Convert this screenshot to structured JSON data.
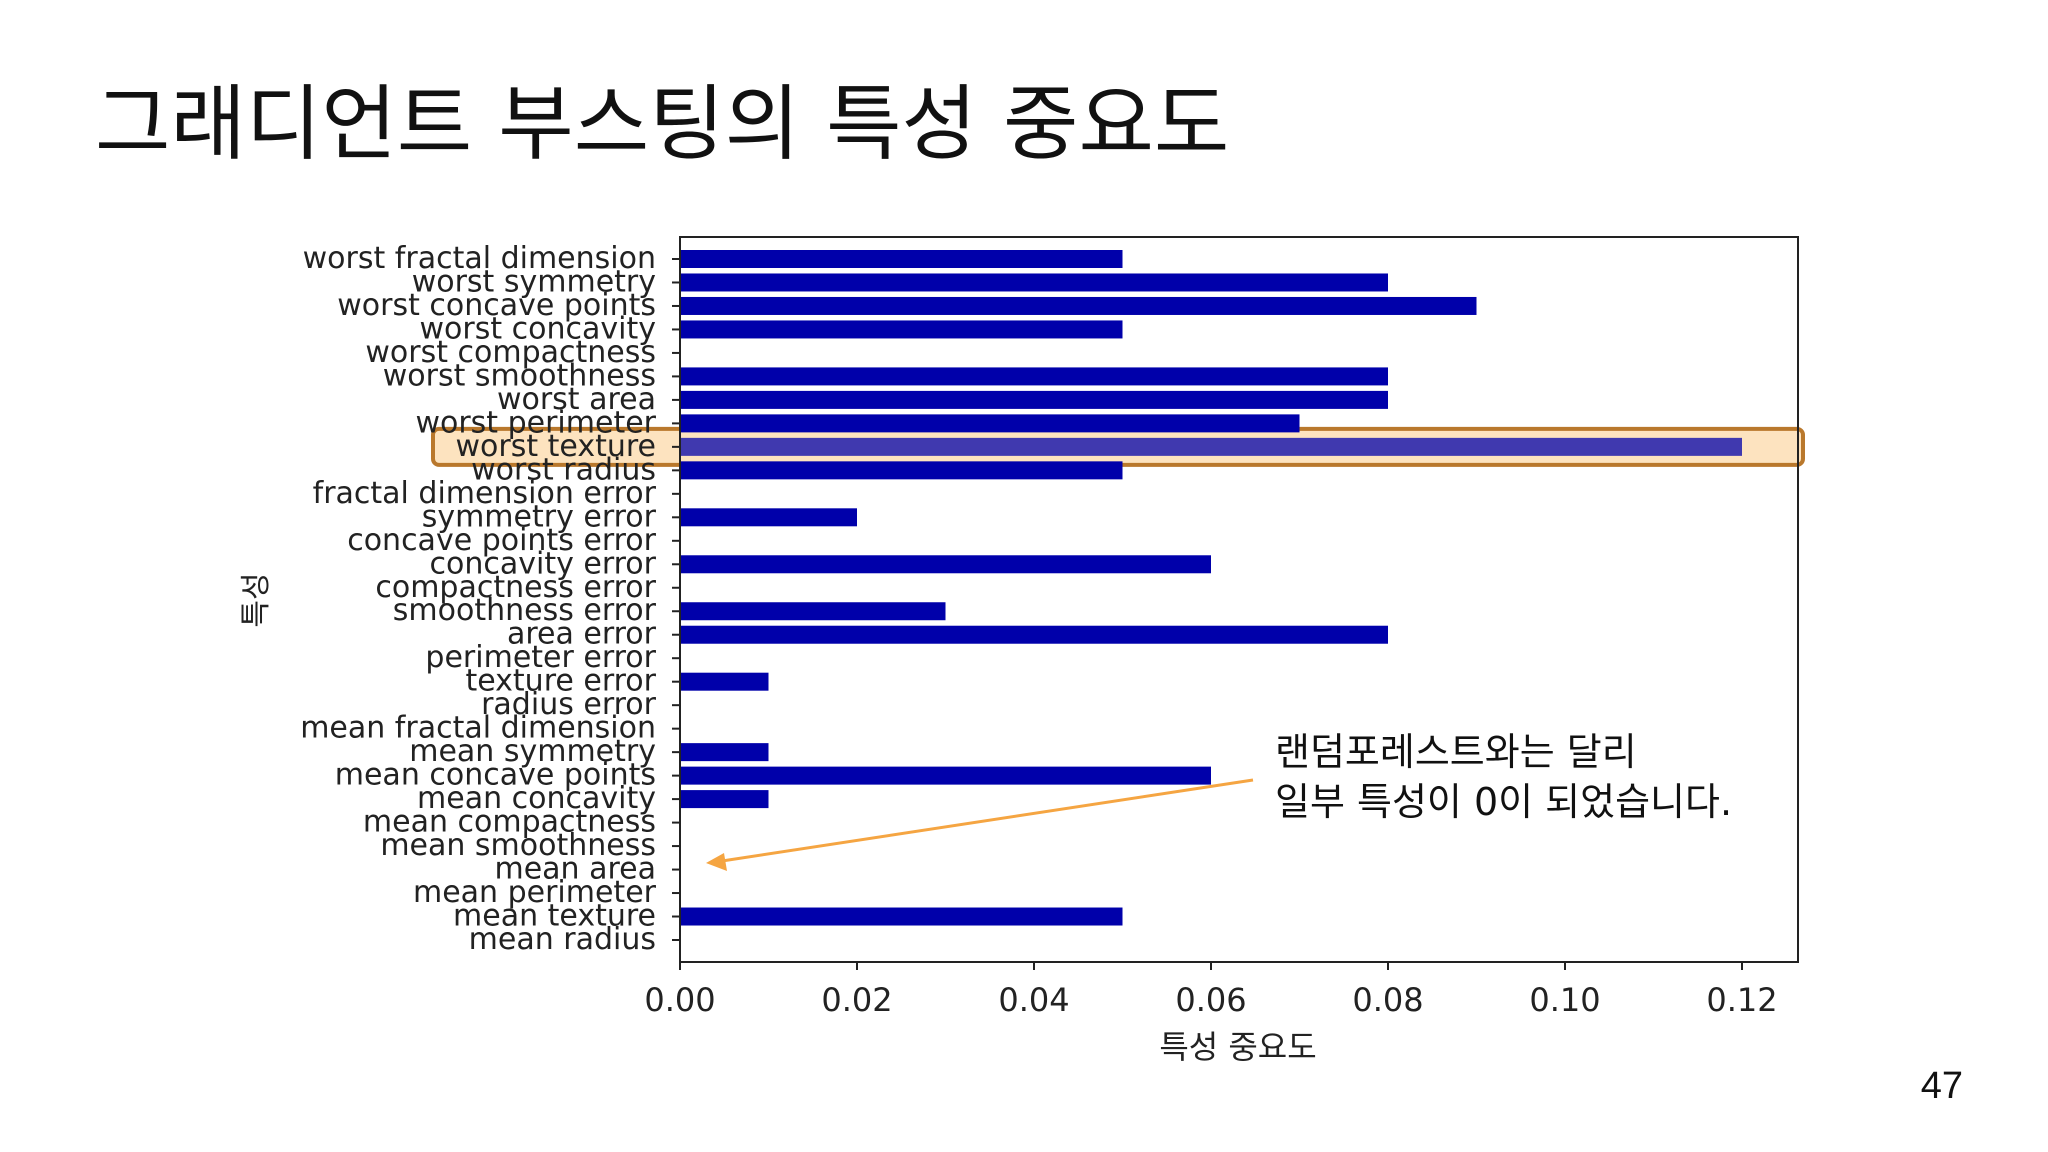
{
  "slide": {
    "title": "그래디언트 부스팅의 특성 중요도",
    "page_number": "47"
  },
  "annotation": {
    "line1": "랜덤포레스트와는 달리",
    "line2": "일부 특성이 0이 되었습니다.",
    "arrow_color": "#f5a542"
  },
  "highlight": {
    "feature": "worst texture",
    "border_color": "#b9782c",
    "fill_color": "#fde3bf"
  },
  "chart_data": {
    "type": "bar",
    "orientation": "horizontal",
    "xlabel": "특성 중요도",
    "ylabel": "특성",
    "xlim": [
      0,
      0.126
    ],
    "xticks": [
      0.0,
      0.02,
      0.04,
      0.06,
      0.08,
      0.1,
      0.12
    ],
    "xtick_labels": [
      "0.00",
      "0.02",
      "0.04",
      "0.06",
      "0.08",
      "0.10",
      "0.12"
    ],
    "bar_color": "#0000aa",
    "grid": false,
    "categories": [
      "mean radius",
      "mean texture",
      "mean perimeter",
      "mean area",
      "mean smoothness",
      "mean compactness",
      "mean concavity",
      "mean concave points",
      "mean symmetry",
      "mean fractal dimension",
      "radius error",
      "texture error",
      "perimeter error",
      "area error",
      "smoothness error",
      "compactness error",
      "concavity error",
      "concave points error",
      "symmetry error",
      "fractal dimension error",
      "worst radius",
      "worst texture",
      "worst perimeter",
      "worst area",
      "worst smoothness",
      "worst compactness",
      "worst concavity",
      "worst concave points",
      "worst symmetry",
      "worst fractal dimension"
    ],
    "values": [
      0.0,
      0.05,
      0.0,
      0.0,
      0.0,
      0.0,
      0.01,
      0.06,
      0.01,
      0.0,
      0.0,
      0.01,
      0.0,
      0.08,
      0.03,
      0.0,
      0.06,
      0.0,
      0.02,
      0.0,
      0.05,
      0.12,
      0.07,
      0.08,
      0.08,
      0.0,
      0.05,
      0.09,
      0.08,
      0.05
    ]
  }
}
